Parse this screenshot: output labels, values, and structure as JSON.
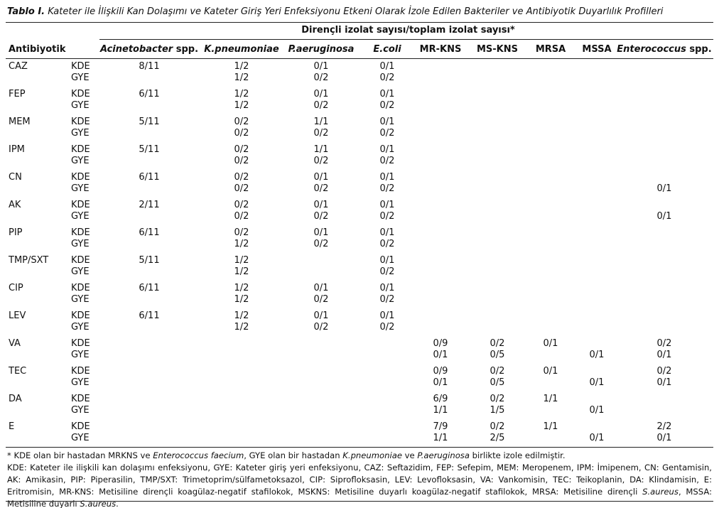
{
  "title_label": "Tablo I.",
  "title": "Kateter ile İlişkili Kan Dolaşımı ve Kateter Giriş Yeri Enfeksiyonu Etkeni Olarak İzole Edilen Bakteriler ve Antibiyotik Duyarlılık Profilleri",
  "table": {
    "group_header": "Dirençli izolat sayısı/toplam izolat sayısı*",
    "stub_header": "Antibiyotik",
    "columns": [
      [
        {
          "text": "Acinetobacter",
          "italic": true
        },
        {
          "text": " spp."
        }
      ],
      [
        {
          "text": "K.pneumoniae",
          "italic": true
        }
      ],
      [
        {
          "text": "P.aeruginosa",
          "italic": true
        }
      ],
      [
        {
          "text": "E.coli",
          "italic": true
        }
      ],
      [
        {
          "text": "MR-KNS"
        }
      ],
      [
        {
          "text": "MS-KNS"
        }
      ],
      [
        {
          "text": "MRSA"
        }
      ],
      [
        {
          "text": "MSSA"
        }
      ],
      [
        {
          "text": "Enterococcus",
          "italic": true
        },
        {
          "text": " spp."
        }
      ]
    ],
    "rows": [
      {
        "antibiotic": "CAZ",
        "lines": [
          {
            "type": "KDE",
            "cells": [
              "8/11",
              "1/2",
              "0/1",
              "0/1",
              null,
              null,
              null,
              null,
              null
            ]
          },
          {
            "type": "GYE",
            "cells": [
              null,
              "1/2",
              "0/2",
              "0/2",
              null,
              null,
              null,
              null,
              null
            ]
          }
        ]
      },
      {
        "antibiotic": "FEP",
        "lines": [
          {
            "type": "KDE",
            "cells": [
              "6/11",
              "1/2",
              "0/1",
              "0/1",
              null,
              null,
              null,
              null,
              null
            ]
          },
          {
            "type": "GYE",
            "cells": [
              null,
              "1/2",
              "0/2",
              "0/2",
              null,
              null,
              null,
              null,
              null
            ]
          }
        ]
      },
      {
        "antibiotic": "MEM",
        "lines": [
          {
            "type": "KDE",
            "cells": [
              "5/11",
              "0/2",
              "1/1",
              "0/1",
              null,
              null,
              null,
              null,
              null
            ]
          },
          {
            "type": "GYE",
            "cells": [
              null,
              "0/2",
              "0/2",
              "0/2",
              null,
              null,
              null,
              null,
              null
            ]
          }
        ]
      },
      {
        "antibiotic": "IPM",
        "lines": [
          {
            "type": "KDE",
            "cells": [
              "5/11",
              "0/2",
              "1/1",
              "0/1",
              null,
              null,
              null,
              null,
              null
            ]
          },
          {
            "type": "GYE",
            "cells": [
              null,
              "0/2",
              "0/2",
              "0/2",
              null,
              null,
              null,
              null,
              null
            ]
          }
        ]
      },
      {
        "antibiotic": "CN",
        "lines": [
          {
            "type": "KDE",
            "cells": [
              "6/11",
              "0/2",
              "0/1",
              "0/1",
              null,
              null,
              null,
              null,
              null
            ]
          },
          {
            "type": "GYE",
            "cells": [
              null,
              "0/2",
              "0/2",
              "0/2",
              null,
              null,
              null,
              null,
              "0/1"
            ]
          }
        ]
      },
      {
        "antibiotic": "AK",
        "lines": [
          {
            "type": "KDE",
            "cells": [
              "2/11",
              "0/2",
              "0/1",
              "0/1",
              null,
              null,
              null,
              null,
              null
            ]
          },
          {
            "type": "GYE",
            "cells": [
              null,
              "0/2",
              "0/2",
              "0/2",
              null,
              null,
              null,
              null,
              "0/1"
            ]
          }
        ]
      },
      {
        "antibiotic": "PIP",
        "lines": [
          {
            "type": "KDE",
            "cells": [
              "6/11",
              "0/2",
              "0/1",
              "0/1",
              null,
              null,
              null,
              null,
              null
            ]
          },
          {
            "type": "GYE",
            "cells": [
              null,
              "1/2",
              "0/2",
              "0/2",
              null,
              null,
              null,
              null,
              null
            ]
          }
        ]
      },
      {
        "antibiotic": "TMP/SXT",
        "lines": [
          {
            "type": "KDE",
            "cells": [
              "5/11",
              "1/2",
              null,
              "0/1",
              null,
              null,
              null,
              null,
              null
            ]
          },
          {
            "type": "GYE",
            "cells": [
              null,
              "1/2",
              null,
              "0/2",
              null,
              null,
              null,
              null,
              null
            ]
          }
        ]
      },
      {
        "antibiotic": "CIP",
        "lines": [
          {
            "type": "KDE",
            "cells": [
              "6/11",
              "1/2",
              "0/1",
              "0/1",
              null,
              null,
              null,
              null,
              null
            ]
          },
          {
            "type": "GYE",
            "cells": [
              null,
              "1/2",
              "0/2",
              "0/2",
              null,
              null,
              null,
              null,
              null
            ]
          }
        ]
      },
      {
        "antibiotic": "LEV",
        "lines": [
          {
            "type": "KDE",
            "cells": [
              "6/11",
              "1/2",
              "0/1",
              "0/1",
              null,
              null,
              null,
              null,
              null
            ]
          },
          {
            "type": "GYE",
            "cells": [
              null,
              "1/2",
              "0/2",
              "0/2",
              null,
              null,
              null,
              null,
              null
            ]
          }
        ]
      },
      {
        "antibiotic": "VA",
        "lines": [
          {
            "type": "KDE",
            "cells": [
              null,
              null,
              null,
              null,
              "0/9",
              "0/2",
              "0/1",
              null,
              "0/2"
            ]
          },
          {
            "type": "GYE",
            "cells": [
              null,
              null,
              null,
              null,
              "0/1",
              "0/5",
              null,
              "0/1",
              "0/1"
            ]
          }
        ]
      },
      {
        "antibiotic": "TEC",
        "lines": [
          {
            "type": "KDE",
            "cells": [
              null,
              null,
              null,
              null,
              "0/9",
              "0/2",
              "0/1",
              null,
              "0/2"
            ]
          },
          {
            "type": "GYE",
            "cells": [
              null,
              null,
              null,
              null,
              "0/1",
              "0/5",
              null,
              "0/1",
              "0/1"
            ]
          }
        ]
      },
      {
        "antibiotic": "DA",
        "lines": [
          {
            "type": "KDE",
            "cells": [
              null,
              null,
              null,
              null,
              "6/9",
              "0/2",
              "1/1",
              null,
              null
            ]
          },
          {
            "type": "GYE",
            "cells": [
              null,
              null,
              null,
              null,
              "1/1",
              "1/5",
              null,
              "0/1",
              null
            ]
          }
        ]
      },
      {
        "antibiotic": "E",
        "lines": [
          {
            "type": "KDE",
            "cells": [
              null,
              null,
              null,
              null,
              "7/9",
              "0/2",
              "1/1",
              null,
              "2/2"
            ]
          },
          {
            "type": "GYE",
            "cells": [
              null,
              null,
              null,
              null,
              "1/1",
              "2/5",
              null,
              "0/1",
              "0/1"
            ]
          }
        ]
      }
    ]
  },
  "notes": [
    [
      {
        "text": "* KDE olan bir hastadan MRKNS ve "
      },
      {
        "text": "Enterococcus faecium",
        "italic": true
      },
      {
        "text": ", GYE olan bir hastadan "
      },
      {
        "text": "K.pneumoniae",
        "italic": true
      },
      {
        "text": " ve "
      },
      {
        "text": "P.aeruginosa",
        "italic": true
      },
      {
        "text": " birlikte izole edilmiştir."
      }
    ],
    [
      {
        "text": "KDE: Kateter ile ilişkili kan dolaşımı enfeksiyonu, GYE: Kateter giriş yeri enfeksiyonu, CAZ: Seftazidim, FEP: Sefepim, MEM: Meropenem, IPM: İmipenem, CN: Gentamisin, AK: Amikasin, PIP: Piperasilin, TMP/SXT: Trimetoprim/sülfametoksazol, CIP: Siprofloksasin, LEV: Levofloksasin, VA: Vankomisin, TEC: Teikoplanin, DA: Klindamisin, E: Eritromisin, MR-KNS: Metisiline dirençli koagülaz-negatif stafilokok, MSKNS: Metisiline duyarlı koagülaz-negatif stafilokok, MRSA: Metisiline dirençli "
      },
      {
        "text": "S.aureus",
        "italic": true
      },
      {
        "text": ", MSSA: Metisiline duyarlı "
      },
      {
        "text": "S.aureus",
        "italic": true
      },
      {
        "text": "."
      }
    ]
  ]
}
